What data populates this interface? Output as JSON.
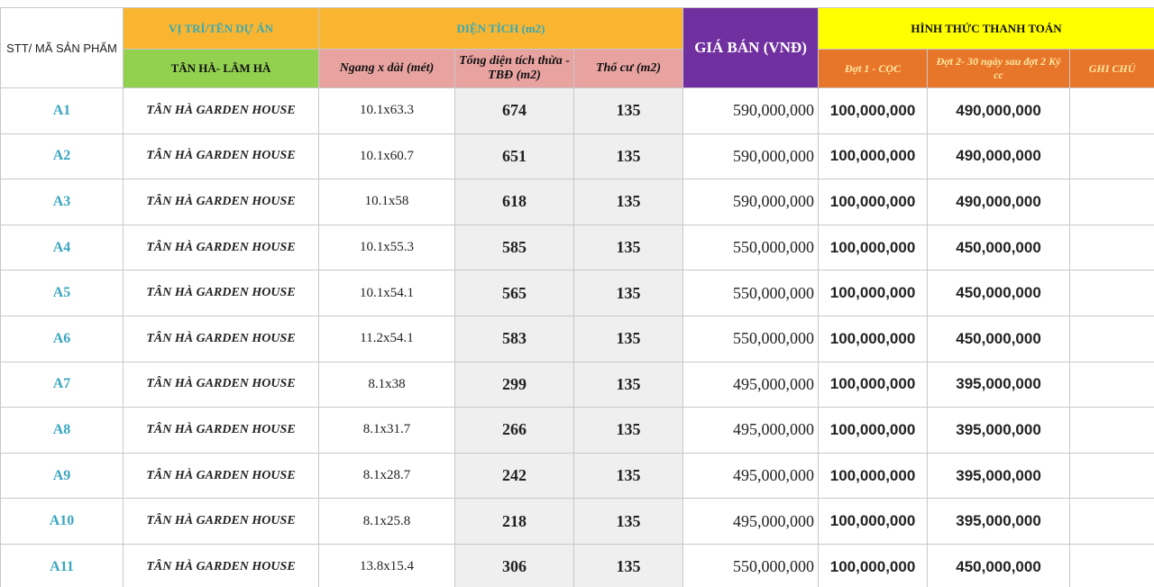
{
  "header": {
    "stt": "STT/ MÃ SẢN PHẨM",
    "location": "VỊ TRÍ/TÊN DỰ ÁN",
    "location_value": "TÂN HÀ- LÂM HÀ",
    "area": "DIỆN TÍCH (m2)",
    "dimensions": "Ngang x dài (mét)",
    "total_area": "Tổng diện tích thừa - TBĐ (m2)",
    "residential": "Thổ cư (m2)",
    "price": "GIÁ BÁN (VNĐ)",
    "payment": "HÌNH THỨC THANH TOÁN",
    "installment_1": "Đợt 1 - CỌC",
    "installment_2": "Đợt 2- 30 ngày sau đợt 2 Ký cc",
    "note": "GHI CHÚ"
  },
  "table": {
    "rows": [
      [
        "A1",
        "TÂN HÀ GARDEN HOUSE",
        "10.1x63.3",
        "674",
        "135",
        "590,000,000",
        "100,000,000",
        "490,000,000"
      ],
      [
        "A2",
        "TÂN HÀ GARDEN HOUSE",
        "10.1x60.7",
        "651",
        "135",
        "590,000,000",
        "100,000,000",
        "490,000,000"
      ],
      [
        "A3",
        "TÂN HÀ GARDEN HOUSE",
        "10.1x58",
        "618",
        "135",
        "590,000,000",
        "100,000,000",
        "490,000,000"
      ],
      [
        "A4",
        "TÂN HÀ GARDEN HOUSE",
        "10.1x55.3",
        "585",
        "135",
        "550,000,000",
        "100,000,000",
        "450,000,000"
      ],
      [
        "A5",
        "TÂN HÀ GARDEN HOUSE",
        "10.1x54.1",
        "565",
        "135",
        "550,000,000",
        "100,000,000",
        "450,000,000"
      ],
      [
        "A6",
        "TÂN HÀ GARDEN HOUSE",
        "11.2x54.1",
        "583",
        "135",
        "550,000,000",
        "100,000,000",
        "450,000,000"
      ],
      [
        "A7",
        "TÂN HÀ GARDEN HOUSE",
        "8.1x38",
        "299",
        "135",
        "495,000,000",
        "100,000,000",
        "395,000,000"
      ],
      [
        "A8",
        "TÂN HÀ GARDEN HOUSE",
        "8.1x31.7",
        "266",
        "135",
        "495,000,000",
        "100,000,000",
        "395,000,000"
      ],
      [
        "A9",
        "TÂN HÀ GARDEN HOUSE",
        "8.1x28.7",
        "242",
        "135",
        "495,000,000",
        "100,000,000",
        "395,000,000"
      ],
      [
        "A10",
        "TÂN HÀ GARDEN HOUSE",
        "8.1x25.8",
        "218",
        "135",
        "495,000,000",
        "100,000,000",
        "395,000,000"
      ],
      [
        "A11",
        "TÂN HÀ GARDEN HOUSE",
        "13.8x15.4",
        "306",
        "135",
        "550,000,000",
        "100,000,000",
        "450,000,000"
      ]
    ]
  }
}
